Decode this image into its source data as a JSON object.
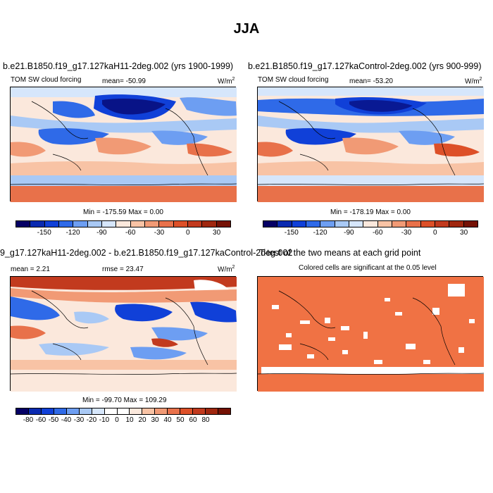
{
  "main_title": "JJA",
  "panels": {
    "top_left": {
      "title": "b.e21.B1850.f19_g17.127kaH11-2deg.002 (yrs 1900-1999)",
      "variable": "TOM SW cloud forcing",
      "mean_label": "mean= -50.99",
      "units": "W/m",
      "units_sup": "2",
      "minmax": "Min = -175.59 Max =   0.00"
    },
    "top_right": {
      "title": "b.e21.B1850.f19_g17.127kaControl-2deg.002 (yrs 900-999)",
      "variable": "TOM SW cloud forcing",
      "mean_label": "mean= -53.20",
      "units": "W/m",
      "units_sup": "2",
      "minmax": "Min = -178.19 Max =   0.00"
    },
    "bottom_left": {
      "title": "9_g17.127kaH11-2deg.002 - b.e21.B1850.f19_g17.127kaControl-2deg.002",
      "mean_label": "mean =   2.21",
      "rmse_label": "rmse =  23.47",
      "units": "W/m",
      "units_sup": "2",
      "minmax": "Min = -99.70 Max = 109.29"
    },
    "bottom_right": {
      "title": "T-test of the two means at each grid point",
      "subtitle": "Colored cells are significant at the 0.05 level"
    }
  },
  "colorbars": {
    "absolute": {
      "colors": [
        "#050065",
        "#0a2ab0",
        "#1040d8",
        "#2f6ae8",
        "#6d9ef2",
        "#a9c9f5",
        "#d6e6fb",
        "#fbe8dc",
        "#f8c3a5",
        "#f19a75",
        "#e8714a",
        "#dd5028",
        "#c23a1e",
        "#a0270f",
        "#751205"
      ],
      "tick_labels": [
        "-150",
        "-120",
        "-90",
        "-60",
        "-30",
        "0",
        "30"
      ]
    },
    "difference": {
      "colors": [
        "#050065",
        "#0a2ab0",
        "#1040d8",
        "#2f6ae8",
        "#6d9ef2",
        "#a9c9f5",
        "#d6e6fb",
        "#ffffff",
        "#ffffff",
        "#fbe8dc",
        "#f8c3a5",
        "#f19a75",
        "#e8714a",
        "#dd5028",
        "#c23a1e",
        "#a0270f",
        "#751205"
      ],
      "tick_labels": [
        "-80",
        "-60",
        "-50",
        "-40",
        "-30",
        "-20",
        "-10",
        "0",
        "10",
        "20",
        "30",
        "40",
        "50",
        "60",
        "80"
      ]
    }
  },
  "colors": {
    "significant": "#f07244",
    "deep_blue": "#1a3fd0",
    "light_blue": "#a9c9f5",
    "pale": "#fbe8dc",
    "salmon": "#f4a27e",
    "orange_red": "#e8623a",
    "dark_red": "#c7381c"
  }
}
